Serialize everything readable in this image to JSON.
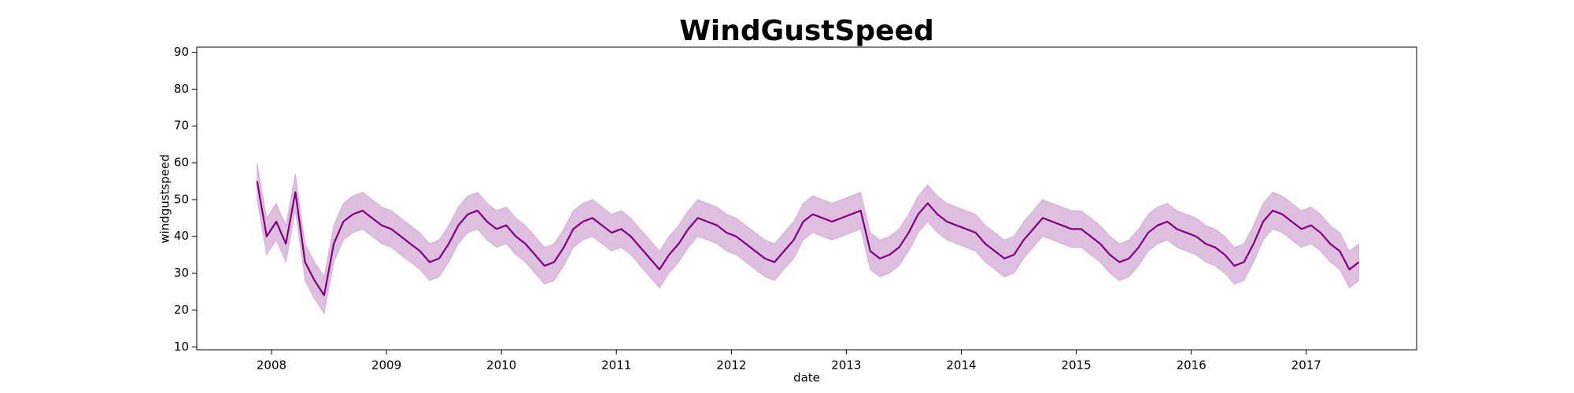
{
  "chart_data": {
    "type": "line",
    "title": "WindGustSpeed",
    "x_label": "date",
    "y_label": "windgustspeed",
    "xlim": [
      2007.35,
      2017.96
    ],
    "xticks": [
      2008,
      2009,
      2010,
      2011,
      2012,
      2013,
      2014,
      2015,
      2016,
      2017
    ],
    "ylim": [
      9.2,
      91.4
    ],
    "yticks": [
      10,
      20,
      30,
      40,
      50,
      60,
      70,
      80,
      90
    ],
    "x": [
      2007.875,
      2007.958,
      2008.042,
      2008.125,
      2008.208,
      2008.292,
      2008.375,
      2008.458,
      2008.542,
      2008.625,
      2008.708,
      2008.792,
      2008.875,
      2008.958,
      2009.042,
      2009.125,
      2009.208,
      2009.292,
      2009.375,
      2009.458,
      2009.542,
      2009.625,
      2009.708,
      2009.792,
      2009.875,
      2009.958,
      2010.042,
      2010.125,
      2010.208,
      2010.292,
      2010.375,
      2010.458,
      2010.542,
      2010.625,
      2010.708,
      2010.792,
      2010.875,
      2010.958,
      2011.042,
      2011.125,
      2011.375,
      2011.458,
      2011.542,
      2011.625,
      2011.708,
      2011.792,
      2011.875,
      2011.958,
      2012.042,
      2012.125,
      2012.208,
      2012.292,
      2012.375,
      2012.458,
      2012.542,
      2012.625,
      2012.708,
      2012.792,
      2012.875,
      2013.125,
      2013.208,
      2013.292,
      2013.375,
      2013.458,
      2013.542,
      2013.625,
      2013.708,
      2013.792,
      2013.875,
      2013.958,
      2014.042,
      2014.125,
      2014.208,
      2014.292,
      2014.375,
      2014.458,
      2014.542,
      2014.625,
      2014.708,
      2014.792,
      2014.875,
      2014.958,
      2015.042,
      2015.125,
      2015.208,
      2015.292,
      2015.375,
      2015.458,
      2015.542,
      2015.625,
      2015.708,
      2015.792,
      2015.875,
      2015.958,
      2016.042,
      2016.125,
      2016.208,
      2016.292,
      2016.375,
      2016.458,
      2016.542,
      2016.625,
      2016.708,
      2016.792,
      2016.875,
      2016.958,
      2017.042,
      2017.125,
      2017.208,
      2017.292,
      2017.375,
      2017.458
    ],
    "series": [
      {
        "color": "#800080",
        "values": [
          55,
          40,
          44,
          38,
          52,
          33,
          28,
          24,
          38,
          44,
          46,
          47,
          45,
          43,
          42,
          40,
          38,
          36,
          33,
          34,
          38,
          43,
          46,
          47,
          44,
          42,
          43,
          40,
          38,
          35,
          32,
          33,
          37,
          42,
          44,
          45,
          43,
          41,
          42,
          40,
          31,
          35,
          38,
          42,
          45,
          44,
          43,
          41,
          40,
          38,
          36,
          34,
          33,
          36,
          39,
          44,
          46,
          45,
          44,
          47,
          36,
          34,
          35,
          37,
          41,
          46,
          49,
          46,
          44,
          43,
          42,
          41,
          38,
          36,
          34,
          35,
          39,
          42,
          45,
          44,
          43,
          42,
          42,
          40,
          38,
          35,
          33,
          34,
          37,
          41,
          43,
          44,
          42,
          41,
          40,
          38,
          37,
          35,
          32,
          33,
          38,
          44,
          47,
          46,
          44,
          42,
          43,
          41,
          38,
          36,
          31,
          33
        ],
        "lower": [
          50,
          35,
          39,
          33,
          47,
          28,
          23,
          19,
          33,
          39,
          41,
          42,
          40,
          38,
          37,
          35,
          33,
          31,
          28,
          29,
          33,
          38,
          41,
          42,
          39,
          37,
          38,
          35,
          33,
          30,
          27,
          28,
          32,
          37,
          39,
          40,
          38,
          36,
          37,
          35,
          26,
          30,
          33,
          37,
          40,
          39,
          38,
          36,
          35,
          33,
          31,
          29,
          28,
          31,
          34,
          39,
          41,
          40,
          39,
          42,
          31,
          29,
          30,
          32,
          36,
          41,
          44,
          41,
          39,
          38,
          37,
          36,
          33,
          31,
          29,
          30,
          34,
          37,
          40,
          39,
          38,
          37,
          37,
          35,
          33,
          30,
          28,
          29,
          32,
          36,
          38,
          39,
          37,
          36,
          35,
          33,
          32,
          30,
          27,
          28,
          33,
          39,
          42,
          41,
          39,
          37,
          38,
          36,
          33,
          31,
          26,
          28
        ],
        "upper": [
          60,
          45,
          49,
          43,
          57,
          38,
          33,
          29,
          43,
          49,
          51,
          52,
          50,
          48,
          47,
          45,
          43,
          41,
          38,
          39,
          43,
          48,
          51,
          52,
          49,
          47,
          48,
          45,
          43,
          40,
          37,
          38,
          42,
          47,
          49,
          50,
          48,
          46,
          47,
          45,
          36,
          40,
          43,
          47,
          50,
          49,
          48,
          46,
          45,
          43,
          41,
          39,
          38,
          41,
          44,
          49,
          51,
          50,
          49,
          52,
          41,
          39,
          40,
          42,
          46,
          51,
          54,
          51,
          49,
          48,
          47,
          46,
          43,
          41,
          39,
          40,
          44,
          47,
          50,
          49,
          48,
          47,
          47,
          45,
          43,
          40,
          38,
          39,
          42,
          46,
          48,
          49,
          47,
          46,
          45,
          43,
          42,
          40,
          37,
          38,
          43,
          49,
          52,
          51,
          49,
          47,
          48,
          46,
          43,
          41,
          36,
          38
        ]
      }
    ]
  }
}
